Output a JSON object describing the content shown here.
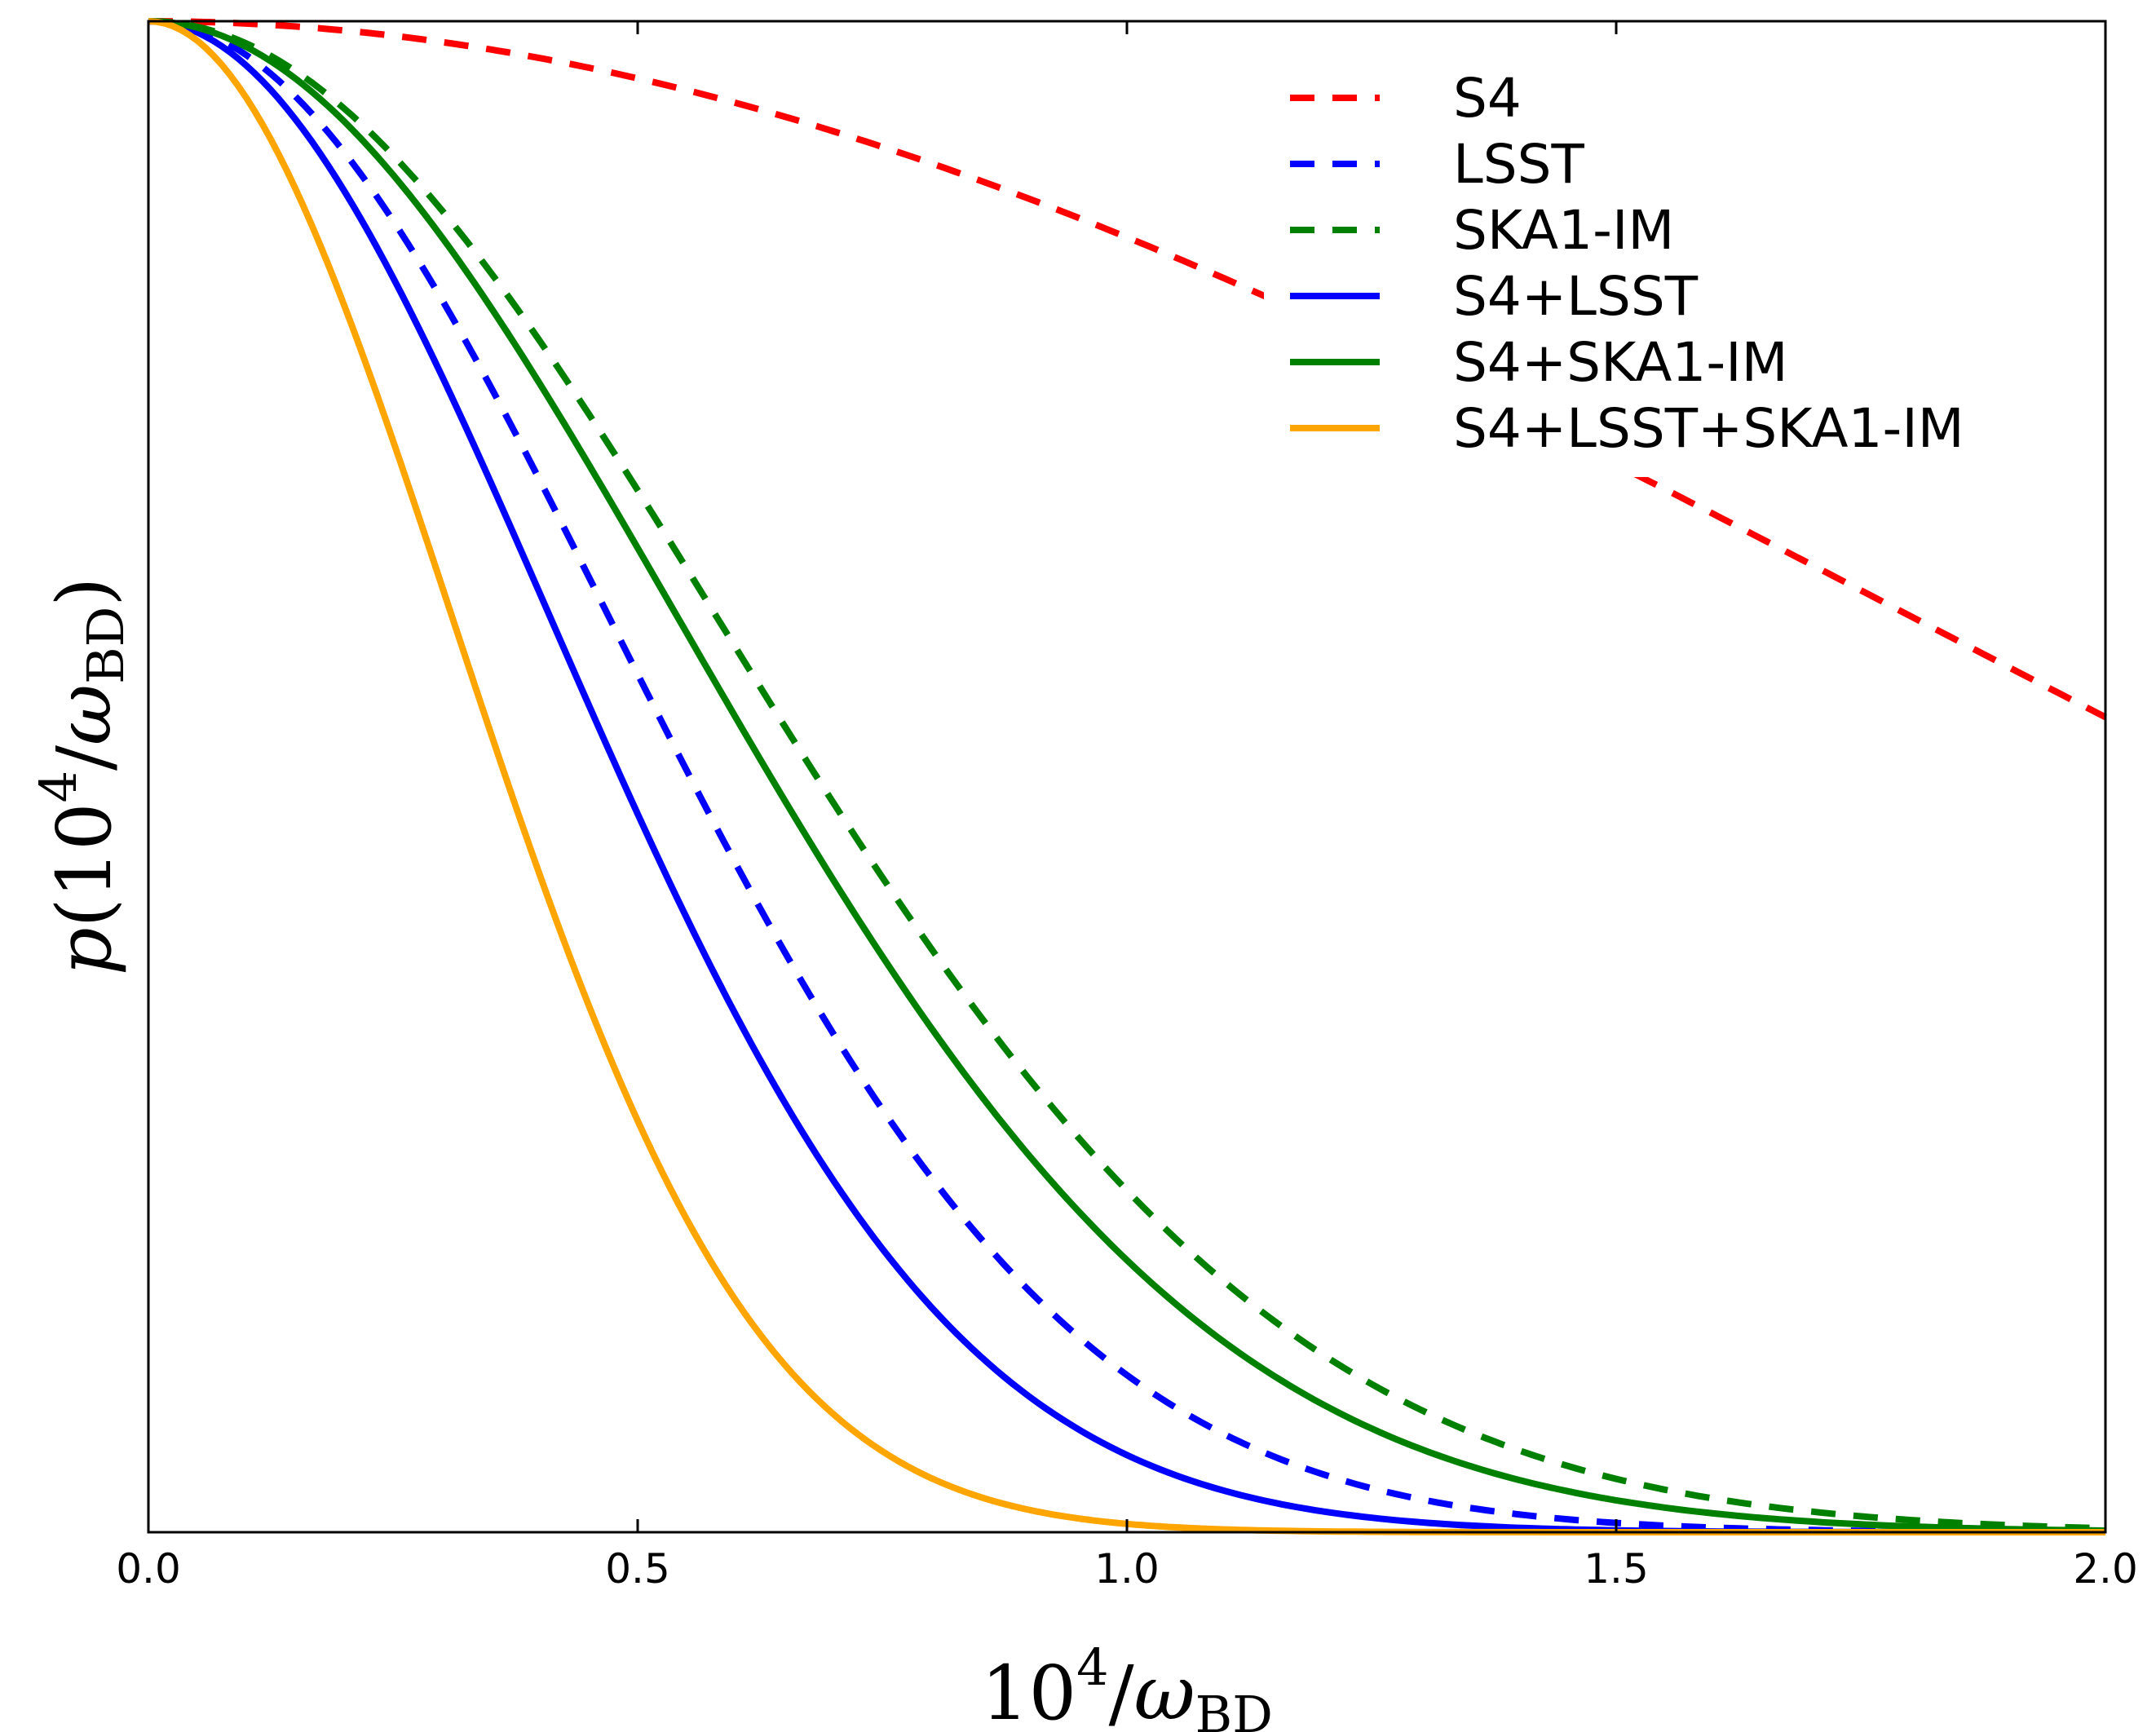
{
  "chart_data": {
    "type": "line",
    "title": "",
    "xlabel": {
      "base": "10",
      "exp": "4",
      "slash": "/",
      "symbol": "ω",
      "sub": "BD"
    },
    "ylabel": {
      "p": "p",
      "lparen": "(",
      "base": "10",
      "exp": "4",
      "slash": "/",
      "symbol": "ω",
      "sub": "BD",
      "rparen": ")"
    },
    "xlim": [
      0.0,
      2.0
    ],
    "ylim": [
      0.0,
      1.0
    ],
    "x_ticks": [
      0.0,
      0.5,
      1.0,
      1.5,
      2.0
    ],
    "x_tick_labels": [
      "0.0",
      "0.5",
      "1.0",
      "1.5",
      "2.0"
    ],
    "y_ticks_visible": false,
    "grid": false,
    "legend_position": "top-right",
    "series": [
      {
        "name": "S4",
        "color": "#ff0000",
        "style": "dashed",
        "sigma": 1.8
      },
      {
        "name": "LSST",
        "color": "#0000ff",
        "style": "dashed",
        "sigma": 0.47
      },
      {
        "name": "SKA1-IM",
        "color": "#008000",
        "style": "dashed",
        "sigma": 0.58
      },
      {
        "name": "S4+LSST",
        "color": "#0000ff",
        "style": "solid",
        "sigma": 0.41
      },
      {
        "name": "S4+SKA1-IM",
        "color": "#008000",
        "style": "solid",
        "sigma": 0.54
      },
      {
        "name": "S4+LSST+SKA1-IM",
        "color": "#ffa500",
        "style": "solid",
        "sigma": 0.31
      }
    ]
  }
}
